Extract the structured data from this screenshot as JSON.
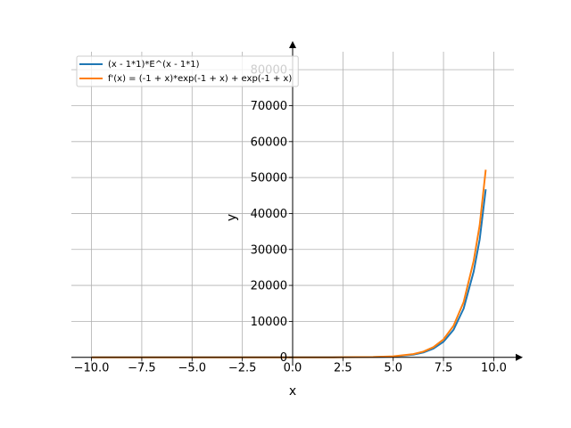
{
  "chart_data": {
    "type": "line",
    "title": "",
    "xlabel": "x",
    "ylabel": "y",
    "xlim": [
      -11.0,
      11.0
    ],
    "ylim": [
      -2300,
      85000
    ],
    "grid": true,
    "legend_position": "top-left",
    "x_ticks": [
      -10.0,
      -7.5,
      -5.0,
      -2.5,
      0.0,
      2.5,
      5.0,
      7.5,
      10.0
    ],
    "x_tick_labels": [
      "−10.0",
      "−7.5",
      "−5.0",
      "−2.5",
      "0.0",
      "2.5",
      "5.0",
      "7.5",
      "10.0"
    ],
    "y_ticks": [
      0,
      10000,
      20000,
      30000,
      40000,
      50000,
      60000,
      70000,
      80000
    ],
    "y_tick_labels": [
      "0",
      "10000",
      "20000",
      "30000",
      "40000",
      "50000",
      "60000",
      "70000",
      "80000"
    ],
    "x": [
      -10.0,
      -8.0,
      -6.0,
      -4.0,
      -2.0,
      0.0,
      2.0,
      4.0,
      5.0,
      6.0,
      6.5,
      7.0,
      7.5,
      8.0,
      8.5,
      9.0,
      9.3,
      9.6
    ],
    "series": [
      {
        "name": "(x - 1*1)*E^(x - 1*1)",
        "color": "#1f77b4",
        "values": [
          0,
          0,
          0,
          -0.03,
          -0.15,
          -0.37,
          2.7,
          60,
          218,
          742,
          1345,
          2421,
          4325,
          7676,
          13540,
          23850,
          32820,
          46750
        ]
      },
      {
        "name": "f'(x) = (-1 + x)*exp(-1 + x) + exp(-1 + x)",
        "color": "#ff7f0e",
        "values": [
          0,
          0,
          0,
          -0.02,
          -0.1,
          0,
          5.4,
          80,
          273,
          890,
          1590,
          2824,
          4990,
          8772,
          15350,
          26830,
          36780,
          52180
        ]
      }
    ]
  }
}
